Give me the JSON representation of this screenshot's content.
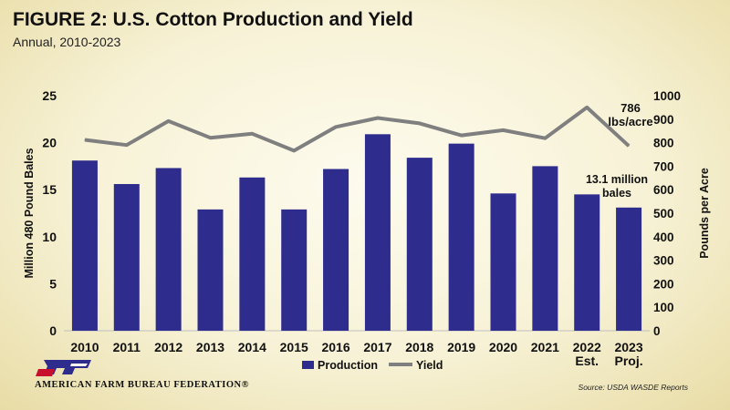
{
  "header": {
    "title": "FIGURE 2: U.S. Cotton Production and Yield",
    "subtitle": "Annual, 2010-2023"
  },
  "footer": {
    "org_name": "AMERICAN FARM BUREAU FEDERATION®",
    "source": "Source: USDA WASDE Reports"
  },
  "colors": {
    "production": "#2e2c8c",
    "yield": "#7f7f7f"
  },
  "chart_data": {
    "type": "bar",
    "categories": [
      "2010",
      "2011",
      "2012",
      "2013",
      "2014",
      "2015",
      "2016",
      "2017",
      "2018",
      "2019",
      "2020",
      "2021",
      "2022\nEst.",
      "2023\nProj."
    ],
    "series": [
      {
        "name": "Production",
        "type": "bar",
        "axis": "left",
        "values": [
          18.1,
          15.6,
          17.3,
          12.9,
          16.3,
          12.9,
          17.2,
          20.9,
          18.4,
          19.9,
          14.6,
          17.5,
          14.5,
          13.1
        ]
      },
      {
        "name": "Yield",
        "type": "line",
        "axis": "right",
        "values": [
          812,
          790,
          892,
          821,
          838,
          766,
          867,
          905,
          882,
          831,
          853,
          819,
          950,
          786
        ]
      }
    ],
    "ylabel": "Million 480 Pound Bales",
    "y2label": "Pounds per Acre",
    "ylim": [
      0,
      25
    ],
    "y2lim": [
      0,
      1000
    ],
    "yticks": [
      "0",
      "5",
      "10",
      "15",
      "20",
      "25"
    ],
    "y2ticks": [
      "0",
      "100",
      "200",
      "300",
      "400",
      "500",
      "600",
      "700",
      "800",
      "900",
      "1000"
    ],
    "annotations": [
      {
        "text": "786\nlbs/acre",
        "target": "Yield",
        "index": 13
      },
      {
        "text": "13.1 million\nbales",
        "target": "Production",
        "index": 13
      }
    ],
    "legend": "bottom",
    "grid": false
  }
}
